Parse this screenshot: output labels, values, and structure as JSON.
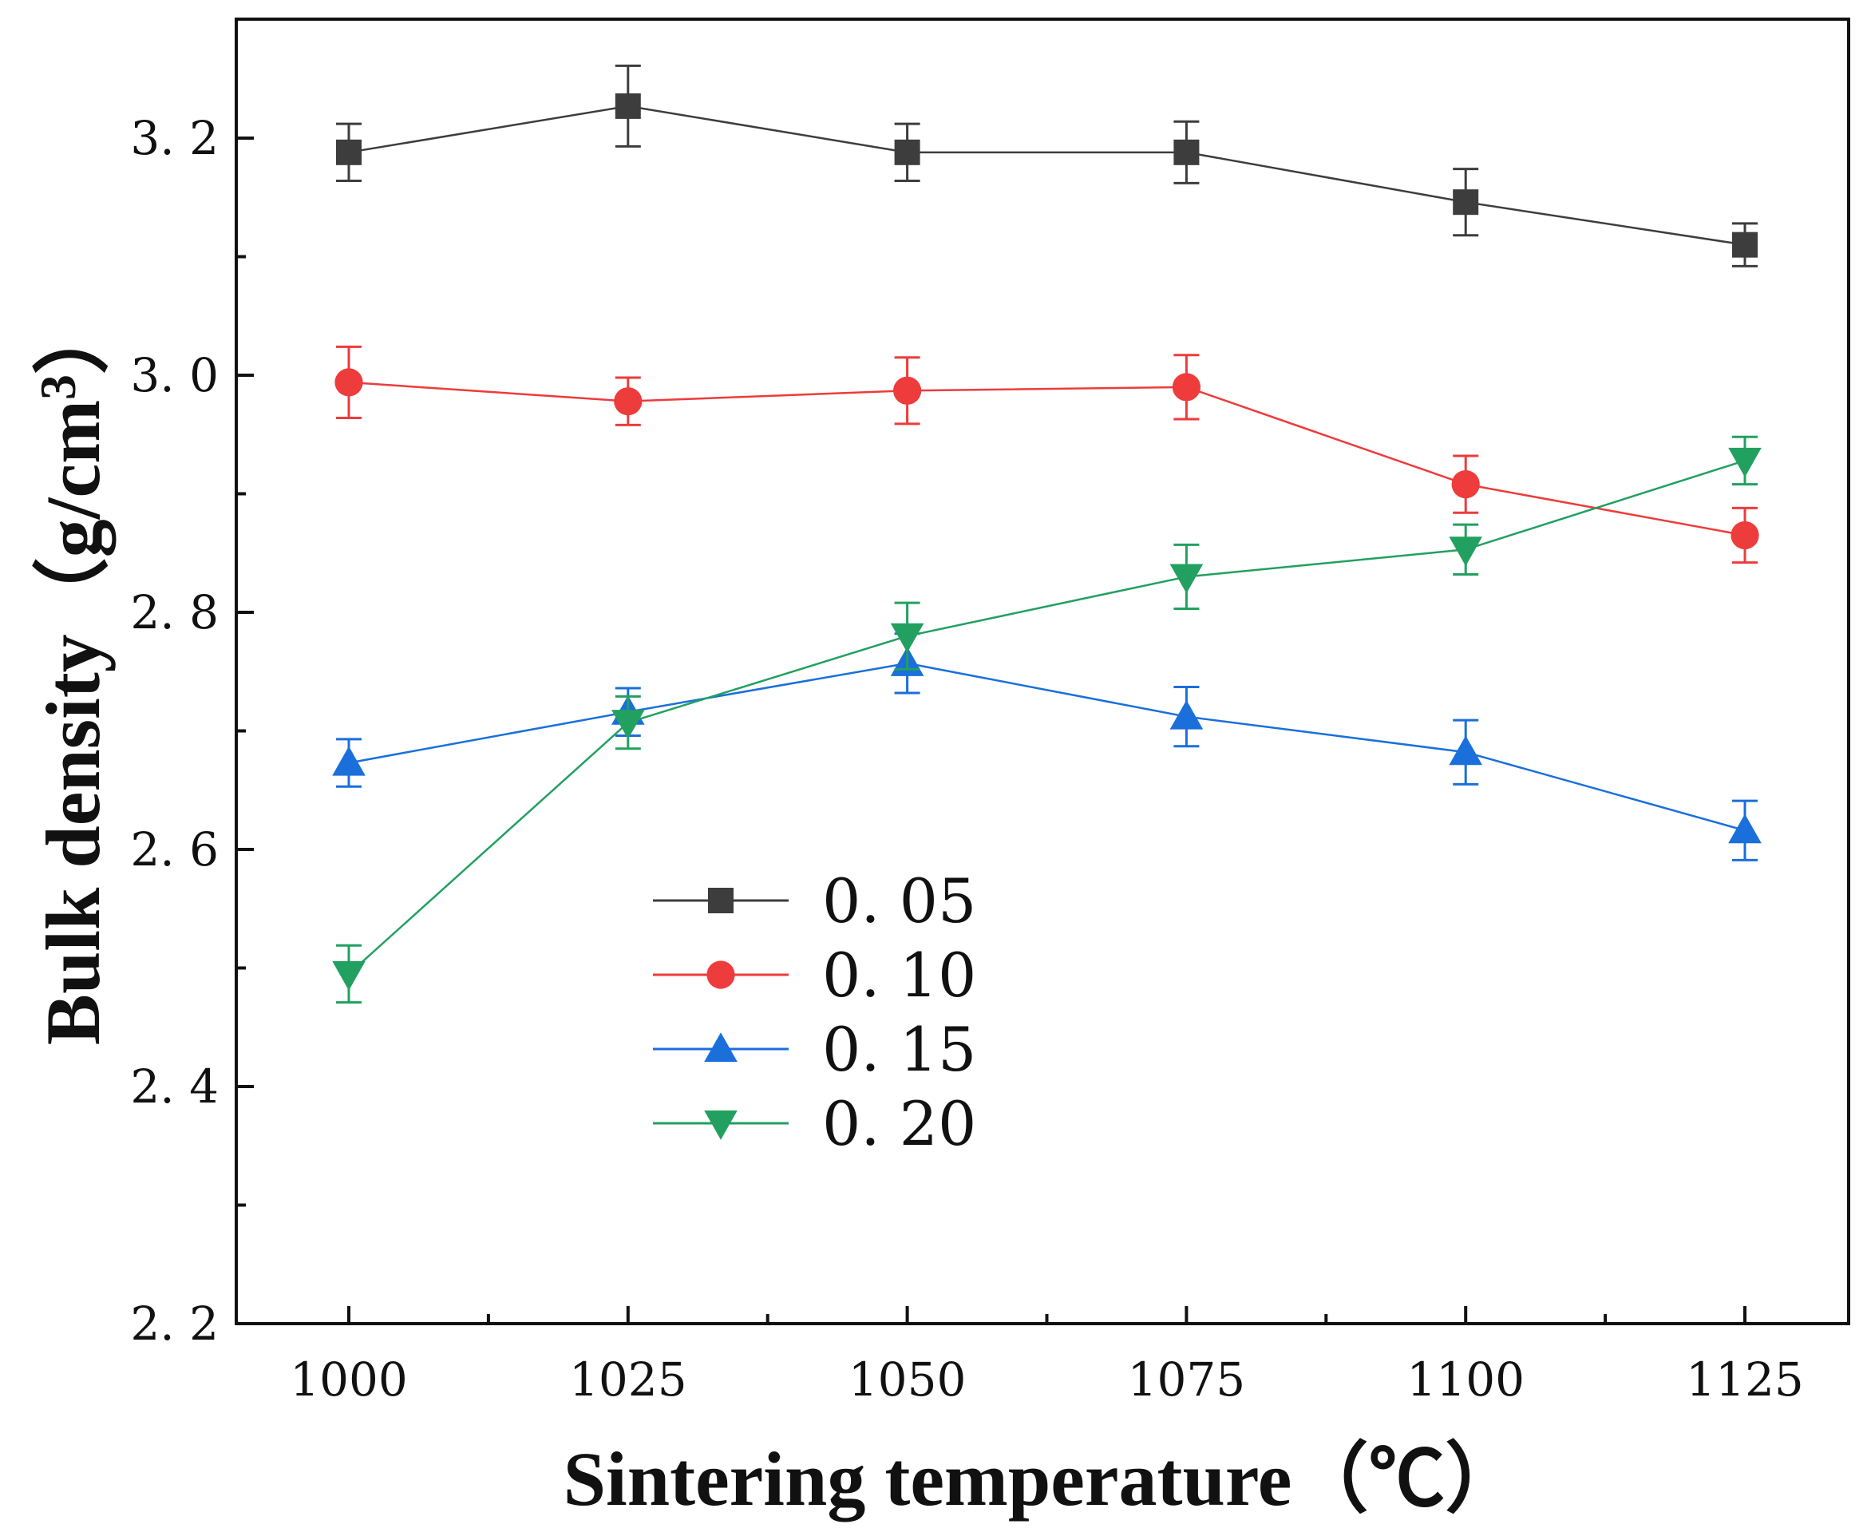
{
  "chart_data": {
    "type": "line",
    "title": "",
    "xlabel": "Sintering temperature（℃）",
    "ylabel_main": "Bulk density（g/cm",
    "ylabel_sup": "3",
    "ylabel_close": "）",
    "x": [
      1000,
      1025,
      1050,
      1075,
      1100,
      1125
    ],
    "x_tick_labels": [
      "1000",
      "1025",
      "1050",
      "1075",
      "1100",
      "1125"
    ],
    "xlim": [
      990,
      1132
    ],
    "ylim": [
      2.2,
      3.3
    ],
    "y_ticks": [
      2.2,
      2.4,
      2.6,
      2.8,
      3.0,
      3.2
    ],
    "y_tick_labels": [
      "2. 2",
      "2. 4",
      "2. 6",
      "2. 8",
      "3. 0",
      "3. 2"
    ],
    "legend_position": "center-left",
    "series": [
      {
        "name": "0. 05",
        "color": "#3d3d3d",
        "marker": "square",
        "values": [
          3.188,
          3.227,
          3.188,
          3.188,
          3.146,
          3.11
        ],
        "errors": [
          0.024,
          0.034,
          0.024,
          0.026,
          0.028,
          0.018
        ]
      },
      {
        "name": "0. 10",
        "color": "#ee3b3b",
        "marker": "circle",
        "values": [
          2.994,
          2.978,
          2.987,
          2.99,
          2.908,
          2.865
        ],
        "errors": [
          0.03,
          0.02,
          0.028,
          0.027,
          0.024,
          0.023
        ]
      },
      {
        "name": "0. 15",
        "color": "#1a6fdb",
        "marker": "triangle-up",
        "values": [
          2.673,
          2.716,
          2.757,
          2.712,
          2.682,
          2.616
        ],
        "errors": [
          0.02,
          0.02,
          0.025,
          0.025,
          0.027,
          0.025
        ]
      },
      {
        "name": "0. 20",
        "color": "#22a060",
        "marker": "triangle-down",
        "values": [
          2.495,
          2.707,
          2.78,
          2.83,
          2.853,
          2.928
        ],
        "errors": [
          0.024,
          0.022,
          0.028,
          0.027,
          0.021,
          0.02
        ]
      }
    ]
  }
}
